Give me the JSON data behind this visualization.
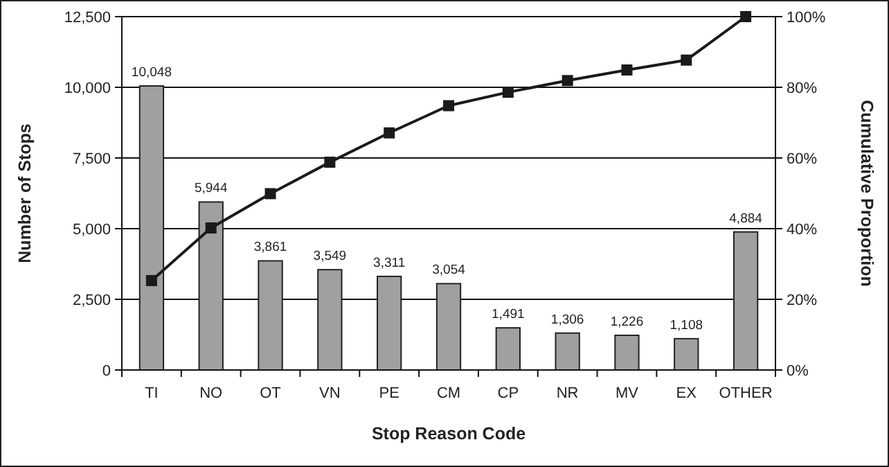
{
  "chart_data": {
    "type": "bar",
    "xlabel": "Stop Reason Code",
    "ylabel": "Number of Stops",
    "y2label": "Cumulative Proportion",
    "categories": [
      "TI",
      "NO",
      "OT",
      "VN",
      "PE",
      "CM",
      "CP",
      "NR",
      "MV",
      "EX",
      "OTHER"
    ],
    "series": [
      {
        "color": "#a0a0a0",
        "values": [
          10048,
          5944,
          3861,
          3549,
          3311,
          3054,
          1491,
          1306,
          1226,
          1108,
          4884
        ],
        "value_labels": [
          "10,048",
          "5,944",
          "3,861",
          "3,549",
          "3,311",
          "3,054",
          "1,491",
          "1,306",
          "1,226",
          "1,108",
          "4,884"
        ]
      },
      {
        "type": "line",
        "axis": "y2",
        "color": "#1a1a1a",
        "marker": "square",
        "line_style": "solid",
        "values": [
          25.3,
          40.2,
          49.9,
          58.8,
          67.1,
          74.8,
          78.6,
          81.9,
          84.9,
          87.7,
          100
        ]
      }
    ],
    "grid": "y",
    "ylim": [
      0,
      12500
    ],
    "yticks": [
      0,
      {
        "value": 2500,
        "label": "2,500"
      },
      {
        "value": 5000,
        "label": "5,000"
      },
      {
        "value": 7500,
        "label": "7,500"
      },
      {
        "value": 10000,
        "label": "10,000"
      },
      {
        "value": 12500,
        "label": "12,500"
      }
    ],
    "y2lim": [
      0,
      100
    ],
    "y2ticks": [
      {
        "value": 0,
        "label": "0%"
      },
      {
        "value": 20,
        "label": "20%"
      },
      {
        "value": 40,
        "label": "40%"
      },
      {
        "value": 60,
        "label": "60%"
      },
      {
        "value": 80,
        "label": "80%"
      },
      {
        "value": 100,
        "label": "100%"
      }
    ]
  }
}
